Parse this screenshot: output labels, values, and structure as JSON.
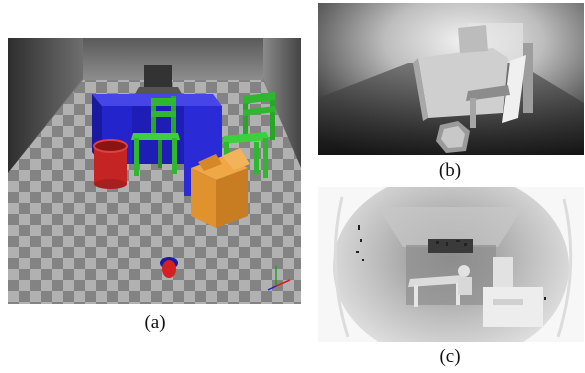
{
  "figure": {
    "panels": [
      {
        "id": "a",
        "caption": "(a)",
        "content": "simulated-room-render",
        "objects": [
          "table",
          "green-chair",
          "green-chair",
          "red-bin",
          "orange-box",
          "laptop",
          "robot-marker",
          "axis-gizmo"
        ]
      },
      {
        "id": "b",
        "caption": "(b)",
        "content": "simulated-depth-image"
      },
      {
        "id": "c",
        "caption": "(c)",
        "content": "real-depth-image"
      }
    ],
    "colors": {
      "table": "#2626d9",
      "chair": "#2fb82f",
      "bin": "#c42424",
      "box": "#e0922f",
      "floor_light": "#bdbdbd",
      "floor_dark": "#8a8a8a"
    }
  }
}
